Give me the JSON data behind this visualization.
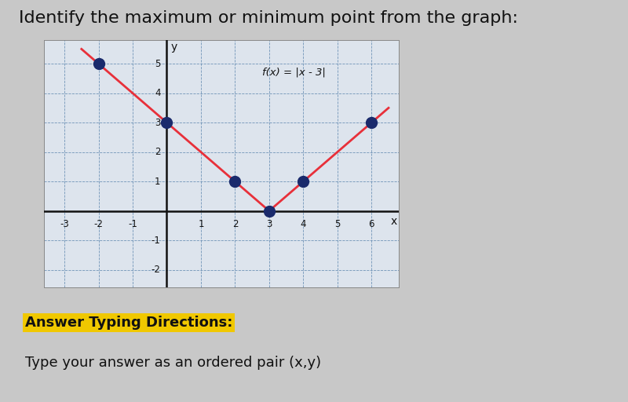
{
  "title": "Identify the maximum or minimum point from the graph:",
  "title_fontsize": 16,
  "func_label": "f(x) = |x - 3|",
  "background_color": "#c8c8c8",
  "graph_bg_color": "#dde4ed",
  "grid_color": "#5580aa",
  "axis_color": "#111111",
  "line_color": "#e8303a",
  "dot_color": "#1a2a6c",
  "dot_points": [
    [
      -2,
      5
    ],
    [
      0,
      3
    ],
    [
      2,
      1
    ],
    [
      3,
      0
    ],
    [
      4,
      1
    ],
    [
      6,
      3
    ]
  ],
  "x_range": [
    -3.6,
    6.8
  ],
  "y_range": [
    -2.6,
    5.8
  ],
  "x_ticks": [
    -3,
    -2,
    -1,
    1,
    2,
    3,
    4,
    5,
    6
  ],
  "y_ticks": [
    -2,
    -1,
    1,
    2,
    3,
    4,
    5
  ],
  "answer_label": "Answer Typing Directions:",
  "answer_label_bg": "#f0c800",
  "instruction": "Type your answer as an ordered pair (x,y)"
}
